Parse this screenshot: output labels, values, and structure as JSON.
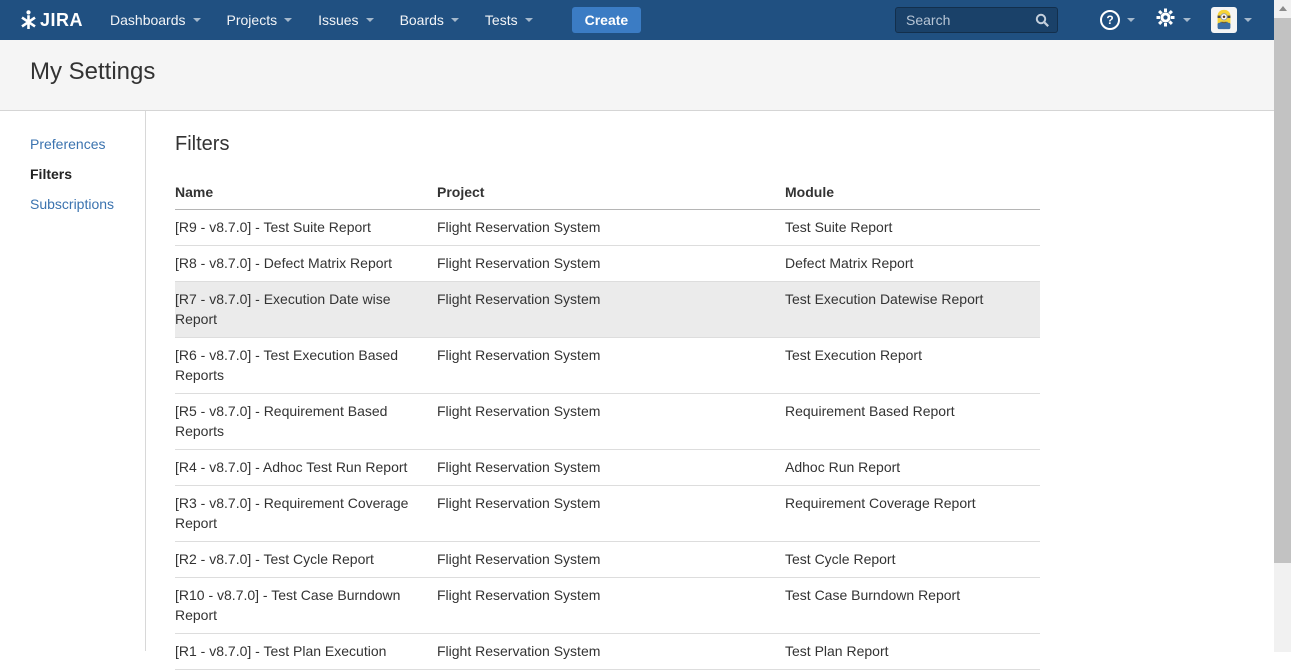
{
  "navbar": {
    "logo_text": "JIRA",
    "menus": [
      {
        "label": "Dashboards"
      },
      {
        "label": "Projects"
      },
      {
        "label": "Issues"
      },
      {
        "label": "Boards"
      },
      {
        "label": "Tests"
      }
    ],
    "create_label": "Create",
    "search_placeholder": "Search",
    "help_glyph": "?"
  },
  "header": {
    "title": "My Settings"
  },
  "sidebar": {
    "items": [
      {
        "label": "Preferences",
        "active": false
      },
      {
        "label": "Filters",
        "active": true
      },
      {
        "label": "Subscriptions",
        "active": false
      }
    ]
  },
  "main": {
    "heading": "Filters",
    "table": {
      "columns": [
        "Name",
        "Project",
        "Module"
      ],
      "rows": [
        {
          "name": "[R9 - v8.7.0] - Test Suite Report",
          "project": "Flight Reservation System",
          "module": "Test Suite Report",
          "highlighted": false
        },
        {
          "name": "[R8 - v8.7.0] - Defect Matrix Report",
          "project": "Flight Reservation System",
          "module": "Defect Matrix Report",
          "highlighted": false
        },
        {
          "name": "[R7 - v8.7.0] - Execution Date wise Report",
          "project": "Flight Reservation System",
          "module": "Test Execution Datewise Report",
          "highlighted": true
        },
        {
          "name": "[R6 - v8.7.0] - Test Execution Based Reports",
          "project": "Flight Reservation System",
          "module": "Test Execution Report",
          "highlighted": false
        },
        {
          "name": "[R5 - v8.7.0] - Requirement Based Reports",
          "project": "Flight Reservation System",
          "module": "Requirement Based Report",
          "highlighted": false
        },
        {
          "name": "[R4 - v8.7.0] - Adhoc Test Run Report",
          "project": "Flight Reservation System",
          "module": "Adhoc Run Report",
          "highlighted": false
        },
        {
          "name": "[R3 - v8.7.0] - Requirement Coverage Report",
          "project": "Flight Reservation System",
          "module": "Requirement Coverage Report",
          "highlighted": false
        },
        {
          "name": "[R2 - v8.7.0] - Test Cycle Report",
          "project": "Flight Reservation System",
          "module": "Test Cycle Report",
          "highlighted": false
        },
        {
          "name": "[R10 - v8.7.0] - Test Case Burndown Report",
          "project": "Flight Reservation System",
          "module": "Test Case Burndown Report",
          "highlighted": false
        },
        {
          "name": "[R1 - v8.7.0] - Test Plan Execution",
          "project": "Flight Reservation System",
          "module": "Test Plan Report",
          "highlighted": false
        }
      ]
    }
  },
  "colors": {
    "navbar_bg": "#205081",
    "create_button_bg": "#3b7cc4",
    "link_blue": "#3b73af",
    "header_bg": "#f5f5f5",
    "row_highlight": "#ebebeb"
  }
}
